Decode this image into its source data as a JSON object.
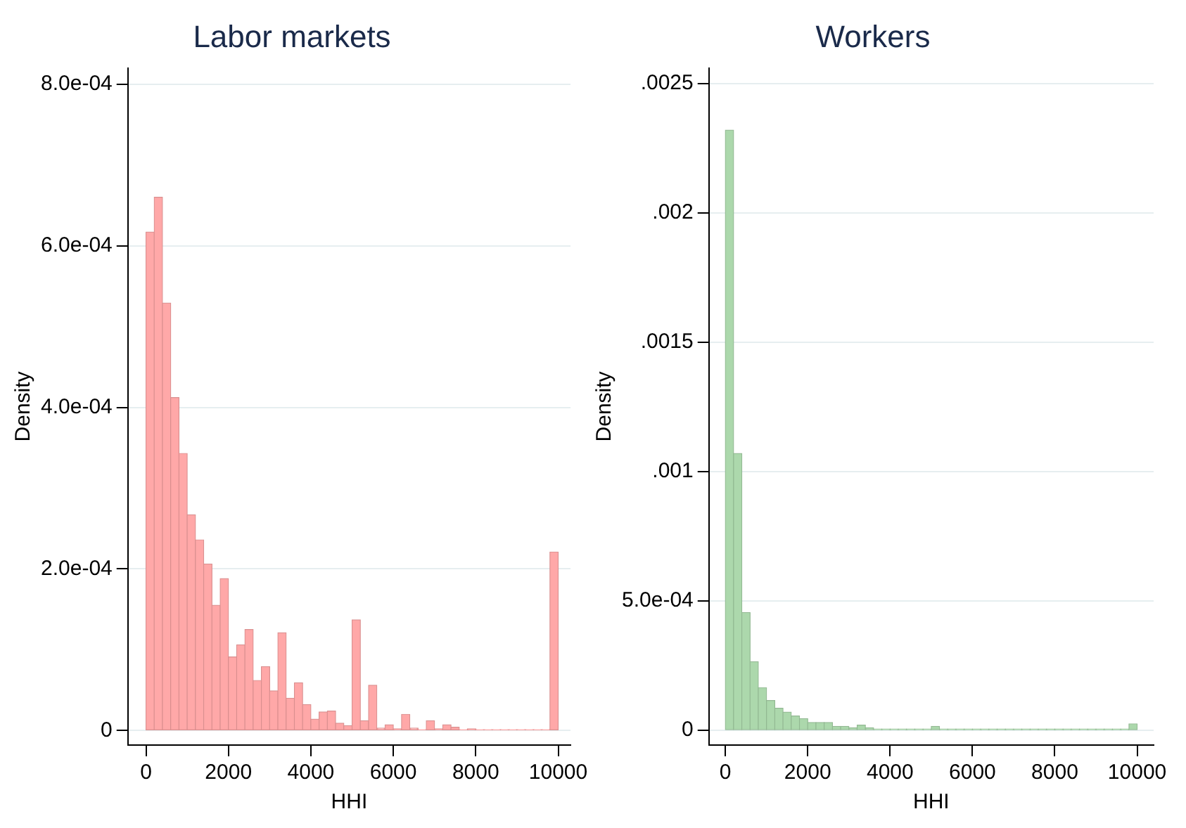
{
  "chart_data": [
    {
      "type": "histogram",
      "title": "Labor markets",
      "xlabel": "HHI",
      "ylabel": "Density",
      "color": "#ffa8a8",
      "bins": [
        0,
        200,
        400,
        600,
        800,
        1000,
        1200,
        1400,
        1600,
        1800,
        2000,
        2200,
        2400,
        2600,
        2800,
        3000,
        3200,
        3400,
        3600,
        3800,
        4000,
        4200,
        4400,
        4600,
        4800,
        5000,
        5200,
        5400,
        5600,
        5800,
        6000,
        6200,
        6400,
        6600,
        6800,
        7000,
        7200,
        7400,
        7600,
        7800,
        8000,
        8200,
        8400,
        8600,
        8800,
        9000,
        9200,
        9400,
        9600,
        9800,
        10000
      ],
      "values": [
        0.000617,
        0.00066,
        0.000529,
        0.000412,
        0.000343,
        0.000267,
        0.000236,
        0.000206,
        0.000155,
        0.000188,
        9.1e-05,
        0.000106,
        0.000125,
        6.2e-05,
        7.9e-05,
        4.9e-05,
        0.000121,
        4e-05,
        5.9e-05,
        3.2e-05,
        1.4e-05,
        2.3e-05,
        2.4e-05,
        9e-06,
        6e-06,
        0.000137,
        1.2e-05,
        5.6e-05,
        3e-06,
        7e-06,
        2e-06,
        2e-05,
        3e-06,
        1e-06,
        1.2e-05,
        2e-06,
        7e-06,
        4e-06,
        1e-06,
        2e-06,
        1e-06,
        1e-06,
        1e-06,
        1e-06,
        1e-06,
        1e-06,
        1e-06,
        1e-06,
        1e-06,
        0.000221
      ],
      "xlim": [
        -440,
        10300
      ],
      "xticks": [
        0,
        2000,
        4000,
        6000,
        8000,
        10000
      ],
      "ylim": [
        -1.8e-05,
        0.00082
      ],
      "yticks": [
        {
          "value": 0,
          "label": "0"
        },
        {
          "value": 0.0002,
          "label": "2.0e-04"
        },
        {
          "value": 0.0004,
          "label": "4.0e-04"
        },
        {
          "value": 0.0006,
          "label": "6.0e-04"
        },
        {
          "value": 0.0008,
          "label": "8.0e-04"
        }
      ],
      "grid": "y"
    },
    {
      "type": "histogram",
      "title": "Workers",
      "xlabel": "HHI",
      "ylabel": "Density",
      "color": "#acd8ac",
      "bins": [
        0,
        200,
        400,
        600,
        800,
        1000,
        1200,
        1400,
        1600,
        1800,
        2000,
        2200,
        2400,
        2600,
        2800,
        3000,
        3200,
        3400,
        3600,
        3800,
        4000,
        4200,
        4400,
        4600,
        4800,
        5000,
        5200,
        5400,
        5600,
        5800,
        6000,
        6200,
        6400,
        6600,
        6800,
        7000,
        7200,
        7400,
        7600,
        7800,
        8000,
        8200,
        8400,
        8600,
        8800,
        9000,
        9200,
        9400,
        9600,
        9800,
        10000
      ],
      "values": [
        0.00232,
        0.00107,
        0.000455,
        0.000265,
        0.000165,
        0.000115,
        8.5e-05,
        7e-05,
        5.5e-05,
        4.5e-05,
        3e-05,
        3e-05,
        3e-05,
        1.5e-05,
        1.5e-05,
        1e-05,
        2e-05,
        1e-05,
        5e-06,
        5e-06,
        5e-06,
        5e-06,
        5e-06,
        5e-06,
        5e-06,
        1.5e-05,
        5e-06,
        5e-06,
        5e-06,
        5e-06,
        5e-06,
        5e-06,
        5e-06,
        5e-06,
        5e-06,
        5e-06,
        5e-06,
        5e-06,
        5e-06,
        5e-06,
        5e-06,
        5e-06,
        5e-06,
        5e-06,
        5e-06,
        5e-06,
        5e-06,
        5e-06,
        5e-06,
        2.5e-05
      ],
      "xlim": [
        -400,
        10400
      ],
      "xticks": [
        0,
        2000,
        4000,
        6000,
        8000,
        10000
      ],
      "ylim": [
        -5.7e-05,
        0.00256
      ],
      "yticks": [
        {
          "value": 0,
          "label": "0"
        },
        {
          "value": 0.0005,
          "label": "5.0e-04"
        },
        {
          "value": 0.001,
          "label": ".001"
        },
        {
          "value": 0.0015,
          "label": ".0015"
        },
        {
          "value": 0.002,
          "label": ".002"
        },
        {
          "value": 0.0025,
          "label": ".0025"
        }
      ],
      "grid": "y"
    }
  ]
}
